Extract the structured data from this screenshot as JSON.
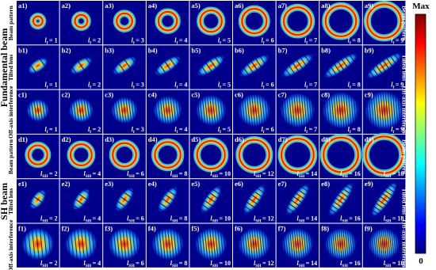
{
  "group_labels": [
    "Fundamental beam",
    "SH beam"
  ],
  "rows": [
    {
      "label": "Beam pattern",
      "symbol": "l",
      "subscript": "f",
      "panels": [
        {
          "label": "a1)",
          "value": "= 1"
        },
        {
          "label": "a2)",
          "value": "= 2"
        },
        {
          "label": "a3)",
          "value": "= 3"
        },
        {
          "label": "a4)",
          "value": "= 4"
        },
        {
          "label": "a5)",
          "value": "= 5"
        },
        {
          "label": "a6)",
          "value": "= 6"
        },
        {
          "label": "a7)",
          "value": "= 7"
        },
        {
          "label": "a8)",
          "value": "= 8"
        },
        {
          "label": "a9)",
          "value": "= 9"
        }
      ]
    },
    {
      "label": "Tilted lens",
      "symbol": "l",
      "subscript": "f",
      "panels": [
        {
          "label": "b1)",
          "value": "= 1"
        },
        {
          "label": "b2)",
          "value": "= 2"
        },
        {
          "label": "b3)",
          "value": "= 3"
        },
        {
          "label": "b4)",
          "value": "= 4"
        },
        {
          "label": "b5)",
          "value": "= 5"
        },
        {
          "label": "b6)",
          "value": "= 6"
        },
        {
          "label": "b7)",
          "value": "= 7"
        },
        {
          "label": "b8)",
          "value": "= 8"
        },
        {
          "label": "b9)",
          "value": "= 9"
        }
      ]
    },
    {
      "label": "Off-axis interference",
      "symbol": "l",
      "subscript": "f",
      "panels": [
        {
          "label": "c1)",
          "value": "= 1"
        },
        {
          "label": "c2)",
          "value": "= 2"
        },
        {
          "label": "c3)",
          "value": "= 3"
        },
        {
          "label": "c4)",
          "value": "= 4"
        },
        {
          "label": "c5)",
          "value": "= 5"
        },
        {
          "label": "c6)",
          "value": "= 6"
        },
        {
          "label": "c7)",
          "value": "= 7"
        },
        {
          "label": "c8)",
          "value": "= 8"
        },
        {
          "label": "c9)",
          "value": "= 9"
        }
      ]
    },
    {
      "label": "Beam pattern",
      "symbol": "l",
      "subscript": "SH",
      "panels": [
        {
          "label": "d1)",
          "value": "= 2"
        },
        {
          "label": "d2)",
          "value": "= 4"
        },
        {
          "label": "d3)",
          "value": "= 6"
        },
        {
          "label": "d4)",
          "value": "= 8"
        },
        {
          "label": "d5)",
          "value": "= 10"
        },
        {
          "label": "d6)",
          "value": "= 12"
        },
        {
          "label": "d7)",
          "value": "= 14"
        },
        {
          "label": "d8)",
          "value": "= 16"
        },
        {
          "label": "d9)",
          "value": "= 18"
        }
      ]
    },
    {
      "label": "Tilted lens",
      "symbol": "l",
      "subscript": "SH",
      "panels": [
        {
          "label": "e1)",
          "value": "= 2"
        },
        {
          "label": "e2)",
          "value": "= 4"
        },
        {
          "label": "e3)",
          "value": "= 6"
        },
        {
          "label": "e4)",
          "value": "= 8"
        },
        {
          "label": "e5)",
          "value": "= 10"
        },
        {
          "label": "e6)",
          "value": "= 12"
        },
        {
          "label": "e7)",
          "value": "= 14"
        },
        {
          "label": "e8)",
          "value": "= 16"
        },
        {
          "label": "e9)",
          "value": "= 18"
        }
      ]
    },
    {
      "label": "Off-axis interference",
      "symbol": "l",
      "subscript": "SH",
      "panels": [
        {
          "label": "f1)",
          "value": "= 2"
        },
        {
          "label": "f2)",
          "value": "= 4"
        },
        {
          "label": "f3)",
          "value": "= 6"
        },
        {
          "label": "f4)",
          "value": "= 8"
        },
        {
          "label": "f5)",
          "value": "= 10"
        },
        {
          "label": "f6)",
          "value": "= 12"
        },
        {
          "label": "f7)",
          "value": "= 14"
        },
        {
          "label": "f8)",
          "value": "= 16"
        },
        {
          "label": "f9)",
          "value": "= 18"
        }
      ]
    }
  ],
  "colorbar": {
    "max": "Max",
    "min": "0"
  }
}
